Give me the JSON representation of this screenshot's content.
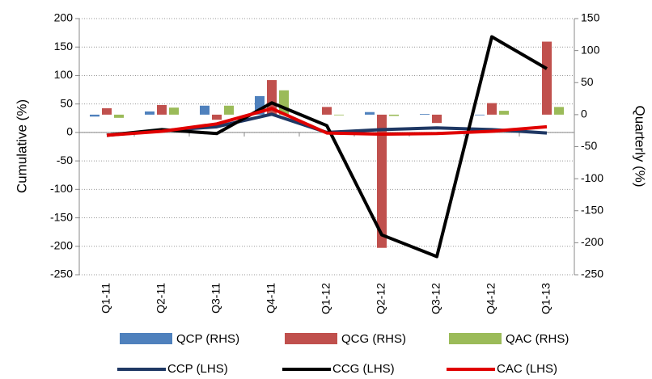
{
  "chart_data": {
    "type": "bar_line_dual",
    "y_label": "Cumulative (%)",
    "y2_label": "Quarterly (%)",
    "categories": [
      "Q1-11",
      "Q2-11",
      "Q3-11",
      "Q4-11",
      "Q1-12",
      "Q2-12",
      "Q3-12",
      "Q4-12",
      "Q1-13"
    ],
    "ylim": [
      -250,
      200
    ],
    "yticks": [
      200,
      150,
      100,
      50,
      0,
      -50,
      -100,
      -150,
      -200,
      -250
    ],
    "y2lim": [
      -250,
      150
    ],
    "y2ticks": [
      150,
      100,
      50,
      0,
      -50,
      -100,
      -150,
      -200,
      -250
    ],
    "grid": true,
    "series": [
      {
        "name": "QCP (RHS)",
        "kind": "bar",
        "axis": "y2",
        "color": "#4f81bd",
        "values": [
          -3,
          5,
          14,
          29,
          0,
          4,
          1,
          -1,
          0
        ]
      },
      {
        "name": "QCG (RHS)",
        "kind": "bar",
        "axis": "y2",
        "color": "#c0504d",
        "values": [
          10,
          15,
          -8,
          54,
          12,
          -208,
          -13,
          18,
          114
        ]
      },
      {
        "name": "QAC (RHS)",
        "kind": "bar",
        "axis": "y2",
        "color": "#9bbb59",
        "values": [
          -5,
          11,
          14,
          38,
          -1,
          -2,
          0,
          6,
          12
        ]
      },
      {
        "name": "CCP (LHS)",
        "kind": "line",
        "axis": "y",
        "color": "#1f3864",
        "values": [
          -5,
          3,
          10,
          32,
          0,
          5,
          8,
          5,
          -1
        ]
      },
      {
        "name": "CCG (LHS)",
        "kind": "line",
        "axis": "y",
        "color": "#000000",
        "values": [
          -5,
          5,
          -2,
          52,
          12,
          -180,
          -218,
          168,
          112
        ]
      },
      {
        "name": "CAC (LHS)",
        "kind": "line",
        "axis": "y",
        "color": "#e00000",
        "values": [
          -5,
          2,
          15,
          42,
          -1,
          -3,
          -2,
          2,
          10
        ]
      }
    ]
  }
}
